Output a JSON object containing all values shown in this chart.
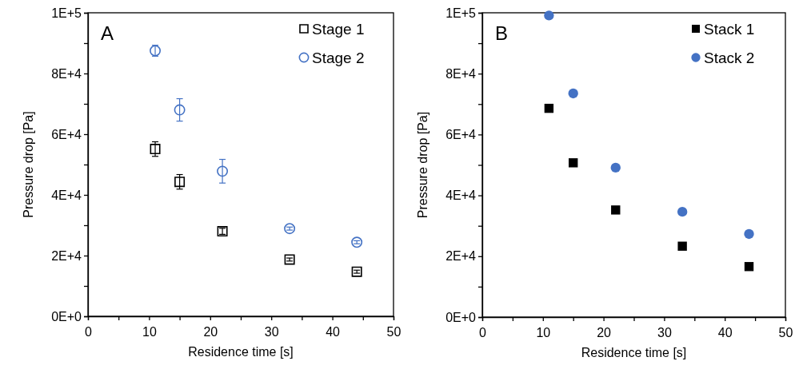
{
  "chart_data": [
    {
      "type": "scatter",
      "xlabel": "Residence time [s]",
      "ylabel": "Pressure drop [Pa]",
      "annotations": [
        "A"
      ],
      "legend": "top right",
      "xlim": [
        0,
        50
      ],
      "xticks": [
        0,
        {
          "value": 5,
          "label": null
        },
        10,
        {
          "value": 15,
          "label": null
        },
        20,
        {
          "value": 25,
          "label": null
        },
        30,
        {
          "value": 35,
          "label": null
        },
        40,
        {
          "value": 45,
          "label": null
        },
        50
      ],
      "ylim": [
        0,
        100000
      ],
      "yticks": [
        {
          "value": 0,
          "label": "0E+0"
        },
        {
          "value": 10000,
          "label": null
        },
        {
          "value": 20000,
          "label": "2E+4"
        },
        {
          "value": 30000,
          "label": null
        },
        {
          "value": 40000,
          "label": "4E+4"
        },
        {
          "value": 50000,
          "label": null
        },
        {
          "value": 60000,
          "label": "6E+4"
        },
        {
          "value": 70000,
          "label": null
        },
        {
          "value": 80000,
          "label": "8E+4"
        },
        {
          "value": 90000,
          "label": null
        },
        {
          "value": 100000,
          "label": "1E+5"
        }
      ],
      "x": [
        11,
        15,
        22,
        33,
        44
      ],
      "series": [
        {
          "name": "Stage 1",
          "color": "#000000",
          "marker": "square",
          "values": [
            55100,
            44300,
            28000,
            18700,
            14700
          ],
          "errors": [
            2400,
            2400,
            1000,
            500,
            500
          ]
        },
        {
          "name": "Stage 2",
          "color": "#4472c4",
          "marker": "circle",
          "values": [
            87500,
            68000,
            47800,
            28900,
            24400
          ],
          "errors": [
            1800,
            3700,
            3900,
            500,
            500
          ]
        }
      ]
    },
    {
      "type": "scatter",
      "xlabel": "Residence time [s]",
      "ylabel": "Pressure drop [Pa]",
      "annotations": [
        "B"
      ],
      "legend": "top right",
      "xlim": [
        0,
        50
      ],
      "xticks": [
        0,
        {
          "value": 5,
          "label": null
        },
        10,
        {
          "value": 15,
          "label": null
        },
        20,
        {
          "value": 25,
          "label": null
        },
        30,
        {
          "value": 35,
          "label": null
        },
        40,
        {
          "value": 45,
          "label": null
        },
        50
      ],
      "ylim": [
        0,
        100000
      ],
      "yticks": [
        {
          "value": 0,
          "label": "0E+0"
        },
        {
          "value": 10000,
          "label": null
        },
        {
          "value": 20000,
          "label": "2E+4"
        },
        {
          "value": 30000,
          "label": null
        },
        {
          "value": 40000,
          "label": "4E+4"
        },
        {
          "value": 50000,
          "label": null
        },
        {
          "value": 60000,
          "label": "6E+4"
        },
        {
          "value": 70000,
          "label": null
        },
        {
          "value": 80000,
          "label": "8E+4"
        },
        {
          "value": 90000,
          "label": null
        },
        {
          "value": 100000,
          "label": "1E+5"
        }
      ],
      "x": [
        11,
        15,
        22,
        33,
        44
      ],
      "series": [
        {
          "name": "Stack 1",
          "color": "#000000",
          "marker": "square",
          "values": [
            68600,
            50700,
            35200,
            23300,
            16600
          ]
        },
        {
          "name": "Stack 2",
          "color": "#4472c4",
          "marker": "circle",
          "values": [
            99100,
            73500,
            49100,
            34600,
            27300
          ]
        }
      ]
    }
  ]
}
